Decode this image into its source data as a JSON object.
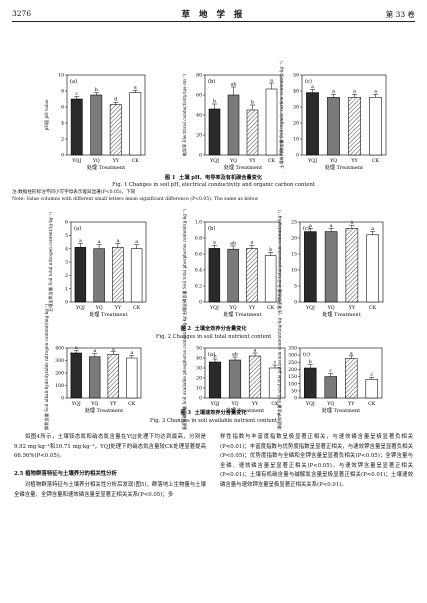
{
  "header": {
    "page_number": "3276",
    "journal": "草 地 学 报",
    "volume": "第 33 卷"
  },
  "figures": [
    {
      "number_cn": "图 1",
      "caption_cn": "土壤 pH、电导率及有机碳含量变化",
      "caption_en": "Fig. 1   Changes in soil pH, electrical conductivity and organic carbon content",
      "note_cn": "注:数据柱形标注不同小写字母表示差异显著(P<0.05)，下同",
      "note_en": "Note: Value columns with different small letters mean significant difference (P<0.05). The same as below"
    },
    {
      "number_cn": "图 2",
      "caption_cn": "土壤全效养分含量变化",
      "caption_en": "Fig. 2   Changes in soil total nutrient content"
    },
    {
      "number_cn": "图 3",
      "caption_cn": "土壤速效养分含量变化",
      "caption_en": "Fig. 3   Changes in soil available nutrient content"
    }
  ],
  "chart_data": [
    {
      "type": "bar",
      "panel": "(a)",
      "ylabel": "pH值 pH value",
      "categories": [
        "YQJ",
        "YQ",
        "YY",
        "CK"
      ],
      "values": [
        7.0,
        7.5,
        6.3,
        7.8
      ],
      "errors": [
        0.3,
        0.3,
        0.3,
        0.3
      ],
      "letters": [
        "c",
        "b",
        "d",
        "a"
      ],
      "ylim": [
        0,
        10
      ],
      "yticks": [
        0,
        2,
        4,
        6,
        8,
        10
      ],
      "xlabel": "处理 Treatment",
      "fig": 1
    },
    {
      "type": "bar",
      "panel": "(b)",
      "ylabel": "电导率 Electrical conductivity/(μs·cm⁻¹)",
      "categories": [
        "YQJ",
        "YQ",
        "YY",
        "CK"
      ],
      "values": [
        46,
        60,
        45,
        66
      ],
      "errors": [
        5,
        8,
        5,
        6
      ],
      "letters": [
        "b",
        "ab",
        "b",
        "a"
      ],
      "ylim": [
        0,
        80
      ],
      "yticks": [
        0,
        20,
        40,
        60,
        80
      ],
      "xlabel": "处理 Treatment",
      "fig": 1
    },
    {
      "type": "bar",
      "panel": "(c)",
      "ylabel": "土壤有机碳含量 Soil organic carbon content/(g·kg⁻¹)",
      "categories": [
        "YQJ",
        "YQ",
        "YY",
        "CK"
      ],
      "values": [
        39,
        36,
        36,
        36
      ],
      "errors": [
        2,
        2,
        2,
        2
      ],
      "letters": [
        "a",
        "a",
        "a",
        "a"
      ],
      "ylim": [
        0,
        50
      ],
      "yticks": [
        0,
        10,
        20,
        30,
        40,
        50
      ],
      "xlabel": "处理 Treatment",
      "fig": 1
    },
    {
      "type": "bar",
      "panel": "(a)",
      "ylabel": "土壤全氮含量 Soil total nitrogen content/(g·kg⁻¹)",
      "categories": [
        "YQJ",
        "YQ",
        "YY",
        "CK"
      ],
      "values": [
        4.1,
        4.0,
        4.1,
        4.0
      ],
      "errors": [
        0.3,
        0.3,
        0.3,
        0.3
      ],
      "letters": [
        "a",
        "a",
        "a",
        "a"
      ],
      "ylim": [
        0,
        6
      ],
      "yticks": [
        0,
        1,
        2,
        3,
        4,
        5,
        6
      ],
      "xlabel": "处理 Treatment",
      "fig": 2
    },
    {
      "type": "bar",
      "panel": "(b)",
      "ylabel": "土壤全磷含量 Soil total phosphorus content/(g·kg⁻¹)",
      "categories": [
        "YQJ",
        "YQ",
        "YY",
        "CK"
      ],
      "values": [
        0.67,
        0.66,
        0.67,
        0.58
      ],
      "errors": [
        0.04,
        0.04,
        0.04,
        0.04
      ],
      "letters": [
        "a",
        "ab",
        "a",
        "b"
      ],
      "ylim": [
        0,
        1.0
      ],
      "yticks": [
        0,
        0.2,
        0.4,
        0.6,
        0.8,
        1.0
      ],
      "xlabel": "处理 Treatment",
      "fig": 2
    },
    {
      "type": "bar",
      "panel": "(c)",
      "ylabel": "土壤全钾含量 Soil total potassium content/(g·kg⁻¹)",
      "categories": [
        "YQJ",
        "YQ",
        "YY",
        "CK"
      ],
      "values": [
        22,
        22,
        23,
        21
      ],
      "errors": [
        1,
        1,
        1,
        1
      ],
      "letters": [
        "a",
        "a",
        "a",
        "a"
      ],
      "ylim": [
        0,
        25
      ],
      "yticks": [
        0,
        5,
        10,
        15,
        20,
        25
      ],
      "xlabel": "处理 Treatment",
      "fig": 2
    },
    {
      "type": "bar",
      "panel": "(a)",
      "ylabel": "土壤碱解氮含量 Soil alkali-hydrolyzable nitrogen content/(mg·kg⁻¹)",
      "categories": [
        "YQJ",
        "YQ",
        "YY",
        "CK"
      ],
      "values": [
        360,
        330,
        350,
        320
      ],
      "errors": [
        20,
        25,
        20,
        20
      ],
      "letters": [
        "a",
        "a",
        "a",
        "a"
      ],
      "ylim": [
        0,
        400
      ],
      "yticks": [
        0,
        100,
        200,
        300,
        400
      ],
      "xlabel": "处理 Treatment",
      "fig": 3
    },
    {
      "type": "bar",
      "panel": "(a)",
      "ylabel": "土壤速效磷含量 Soil available phosphorus content/(mg·kg⁻¹)",
      "categories": [
        "YQJ",
        "YQ",
        "YY",
        "CK"
      ],
      "values": [
        36,
        38,
        42,
        30
      ],
      "errors": [
        3,
        3,
        3,
        3
      ],
      "letters": [
        "b",
        "ab",
        "a",
        "c"
      ],
      "ylim": [
        0,
        50
      ],
      "yticks": [
        0,
        10,
        20,
        30,
        40,
        50
      ],
      "xlabel": "处理 Treatment",
      "fig": 3
    },
    {
      "type": "bar",
      "panel": "(c)",
      "ylabel": "土壤速效钾含量 Soil available potassium content/(mg·kg⁻¹)",
      "categories": [
        "YQJ",
        "YQ",
        "YY",
        "CK"
      ],
      "values": [
        210,
        150,
        275,
        130
      ],
      "errors": [
        25,
        20,
        20,
        15
      ],
      "letters": [
        "b",
        "c",
        "a",
        "c"
      ],
      "ylim": [
        0,
        350
      ],
      "yticks": [
        0,
        50,
        100,
        150,
        200,
        250,
        300,
        350
      ],
      "xlabel": "处理 Treatment",
      "fig": 3
    }
  ],
  "body": {
    "left_para1": "如图4所示，土壤铵态氮和硝态氮含量在YQJ处理下均达到最高，分别是9.92 mg·kg⁻¹和10.71 mg·kg⁻¹，YQJ处理下的硝态氮含量较CK处理显著提高66.56%(P<0.05)。",
    "section_heading": "2.5   植物群落特征与土壤养分的相关性分析",
    "left_para2": "对植物群落特征与土壤养分相关性分析后发现(图5)，群落地上生物量与土壤全磷含量、全钾含量和速效磷含量呈显著正相关关系(P<0.05)；多",
    "right_para": "样性指数与丰富度指数呈极显著正相关，与速效磷含量呈极显著负相关(P<0.01)；丰富度指数与优势度指数呈显著正相关，与速效钾含量呈显著负相关(P<0.05)；优势度指数与全磷和全钾含量呈显著负相关(P<0.05)；全钾含量与全磷、速效磷含量呈显著正相关(P<0.05)，与速效钾含量呈显著正相关(P<0.01)；土壤有机碳含量与碱解氮含量呈极显著正相关(P<0.01)；土壤速效磷含量与速效钾含量呈极显著正相关关系(P<0.01)。"
  }
}
